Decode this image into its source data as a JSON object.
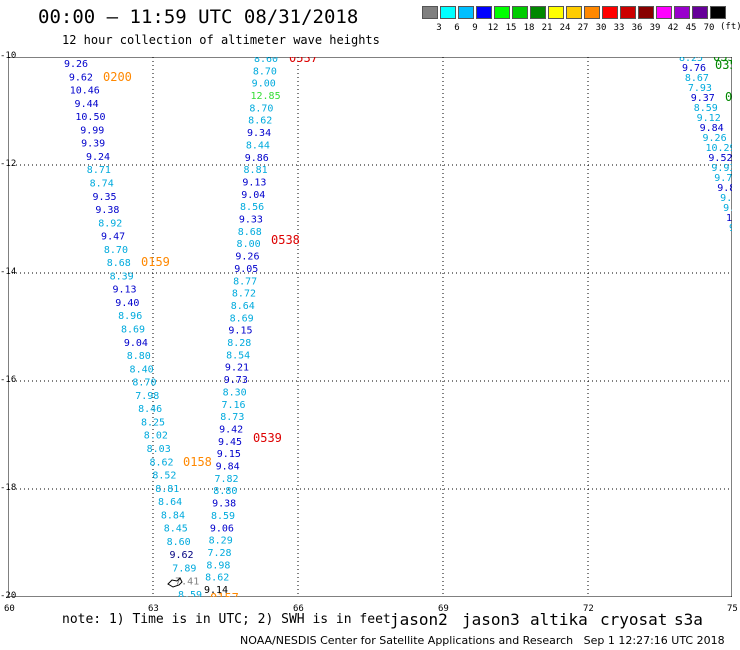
{
  "header": {
    "title": "00:00 – 11:59 UTC 08/31/2018",
    "subtitle": "12 hour collection of altimeter wave heights"
  },
  "legend": {
    "swatches": [
      {
        "color": "#808080",
        "label": "3"
      },
      {
        "color": "#00ffff",
        "label": "6"
      },
      {
        "color": "#00bfff",
        "label": "9"
      },
      {
        "color": "#0000ff",
        "label": "12"
      },
      {
        "color": "#00ff00",
        "label": "15"
      },
      {
        "color": "#00cc00",
        "label": "18"
      },
      {
        "color": "#008800",
        "label": "21"
      },
      {
        "color": "#ffff00",
        "label": "24"
      },
      {
        "color": "#ffcc00",
        "label": "27"
      },
      {
        "color": "#ff8800",
        "label": "30"
      },
      {
        "color": "#ff0000",
        "label": "33"
      },
      {
        "color": "#cc0000",
        "label": "36"
      },
      {
        "color": "#880000",
        "label": "39"
      },
      {
        "color": "#ff00ff",
        "label": "42"
      },
      {
        "color": "#9900cc",
        "label": "45"
      },
      {
        "color": "#660099",
        "label": "70"
      },
      {
        "color": "#000000",
        "label": ""
      }
    ],
    "unit": "(ft)"
  },
  "axes": {
    "y_labels": [
      "-10",
      "-12",
      "-14",
      "-16",
      "-18",
      "-20"
    ],
    "x_labels": [
      "60",
      "63",
      "66",
      "69",
      "72",
      "75"
    ]
  },
  "tracks": [
    {
      "id": "track-0200",
      "time": "0200",
      "time_color": "#ff8800",
      "values": [
        "9.26",
        "9.62",
        "10.46",
        "9.44",
        "10.50",
        "9.99",
        "9.39",
        "9.24",
        "8.71",
        "8.74",
        "9.35",
        "9.38",
        "8.92",
        "9.47",
        "8.70",
        "8.68",
        "8.39",
        "9.13",
        "9.40",
        "8.96",
        "8.69",
        "9.04",
        "8.80",
        "8.40",
        "8.70",
        "7.98",
        "8.46",
        "8.25",
        "8.02",
        "8.03",
        "8.62",
        "8.52",
        "8.81",
        "8.64",
        "8.84",
        "8.45",
        "8.60",
        "9.62",
        "7.89",
        "7.41",
        "8.59"
      ],
      "colors": [
        "#0000cc",
        "#0000cc",
        "#0000cc",
        "#0000cc",
        "#0000cc",
        "#0000cc",
        "#0000cc",
        "#0000cc",
        "#00aadd",
        "#00aadd",
        "#0000cc",
        "#0000cc",
        "#00aadd",
        "#0000cc",
        "#00aadd",
        "#00aadd",
        "#00aadd",
        "#0000cc",
        "#0000cc",
        "#00aadd",
        "#00aadd",
        "#0000cc",
        "#00aadd",
        "#00aadd",
        "#00aadd",
        "#00aadd",
        "#00aadd",
        "#00aadd",
        "#00aadd",
        "#00aadd",
        "#00aadd",
        "#00aadd",
        "#00aadd",
        "#00aadd",
        "#00aadd",
        "#00aadd",
        "#00aadd",
        "#000080",
        "#00aadd",
        "#808080",
        "#00aadd"
      ]
    },
    {
      "id": "track-0537",
      "time": "0537",
      "time_color": "#dd0000",
      "values": [
        "8.60",
        "8.70",
        "9.00",
        "12.85",
        "8.70",
        "8.62",
        "9.34",
        "8.44",
        "9.86",
        "8.81",
        "9.13",
        "9.04",
        "8.56",
        "9.33",
        "8.68",
        "8.00",
        "9.26",
        "9.05",
        "8.77",
        "8.72",
        "8.64",
        "8.69",
        "9.15",
        "8.28",
        "8.54",
        "9.21",
        "9.73",
        "8.30",
        "7.16",
        "8.73",
        "9.42",
        "9.45",
        "9.15",
        "9.84",
        "7.82",
        "8.80",
        "9.38",
        "8.59",
        "9.06",
        "8.29",
        "7.28",
        "8.98",
        "8.62",
        "9.14"
      ],
      "colors": [
        "#00aadd",
        "#00aadd",
        "#00aadd",
        "#33dd33",
        "#00aadd",
        "#00aadd",
        "#0000cc",
        "#00aadd",
        "#0000cc",
        "#00aadd",
        "#0000cc",
        "#0000cc",
        "#00aadd",
        "#0000cc",
        "#00aadd",
        "#00aadd",
        "#0000cc",
        "#0000cc",
        "#00aadd",
        "#00aadd",
        "#00aadd",
        "#00aadd",
        "#0000cc",
        "#00aadd",
        "#00aadd",
        "#0000cc",
        "#0000cc",
        "#00aadd",
        "#00aadd",
        "#00aadd",
        "#0000cc",
        "#0000cc",
        "#0000cc",
        "#0000cc",
        "#00aadd",
        "#00aadd",
        "#0000cc",
        "#00aadd",
        "#0000cc",
        "#00aadd",
        "#00aadd",
        "#00aadd",
        "#00aadd",
        "#000000"
      ]
    }
  ],
  "time_labels": [
    {
      "text": "0538",
      "color": "#dd0000"
    },
    {
      "text": "0539",
      "color": "#dd0000"
    },
    {
      "text": "0159",
      "color": "#ff8800"
    },
    {
      "text": "0158",
      "color": "#ff8800"
    },
    {
      "text": "0157",
      "color": "#ff8800"
    }
  ],
  "right_track": {
    "values": [
      "8.25",
      "9.76",
      "8.67",
      "7.93",
      "9.37",
      "8.59",
      "9.12",
      "9.84",
      "9.26",
      "10.29",
      "9.52",
      "9.93",
      "9.72",
      "9.81",
      "9.44",
      "9.60",
      "10.2",
      "9.7"
    ],
    "time_labels": [
      "035",
      "035",
      "035"
    ],
    "time_color": "#008800"
  },
  "footer": {
    "note": "note: 1) Time is in UTC; 2) SWH is in feet",
    "satellites": [
      {
        "name": "jason2",
        "color": "#0000ff"
      },
      {
        "name": "jason3",
        "color": "#009900"
      },
      {
        "name": "altika",
        "color": "#ff8800"
      },
      {
        "name": "cryosat",
        "color": "#ff0000"
      },
      {
        "name": "s3a",
        "color": "#990000"
      }
    ],
    "credit": "NOAA/NESDIS Center for Satellite Applications and Research",
    "timestamp": "Sep  1 12:27:16 UTC 2018"
  }
}
